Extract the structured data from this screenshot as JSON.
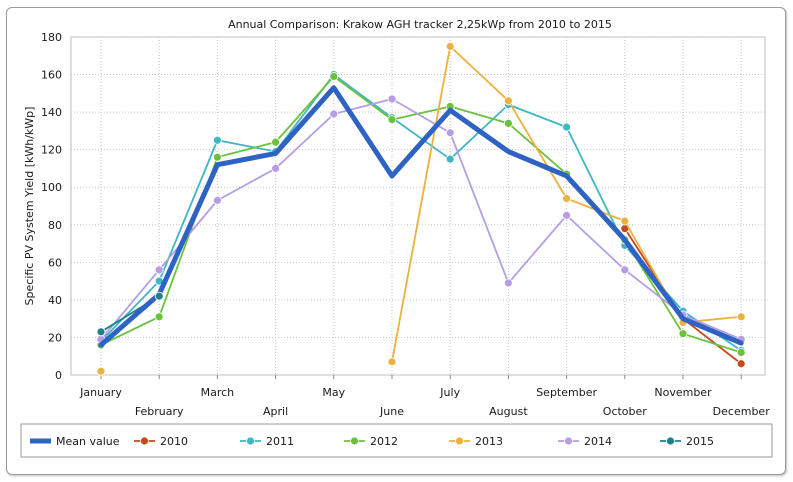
{
  "chart_data": {
    "type": "line",
    "title": "Annual Comparison: Krakow AGH tracker 2,25kWp from 2010 to 2015",
    "xlabel": "",
    "ylabel": "Specific PV System Yield [kWh/kWp]",
    "ylim": [
      0,
      180
    ],
    "yticks": [
      0,
      20,
      40,
      60,
      80,
      100,
      120,
      140,
      160,
      180
    ],
    "grid": true,
    "legend_position": "bottom",
    "categories": [
      "January",
      "February",
      "March",
      "April",
      "May",
      "June",
      "July",
      "August",
      "September",
      "October",
      "November",
      "December"
    ],
    "series": [
      {
        "name": "2010",
        "color": "#c8471b",
        "values": [
          null,
          null,
          null,
          null,
          null,
          null,
          null,
          null,
          null,
          78,
          30,
          6
        ]
      },
      {
        "name": "2011",
        "color": "#3fb6c4",
        "values": [
          18,
          50,
          125,
          119,
          160,
          137,
          115,
          144,
          132,
          69,
          34,
          13
        ]
      },
      {
        "name": "2012",
        "color": "#6ac23c",
        "values": [
          16,
          31,
          116,
          124,
          159,
          136,
          143,
          134,
          107,
          72,
          22,
          12
        ]
      },
      {
        "name": "2013",
        "color": "#ecb13e",
        "values": [
          2,
          null,
          null,
          null,
          null,
          7,
          175,
          146,
          94,
          82,
          28,
          31
        ]
      },
      {
        "name": "2014",
        "color": "#b59ee6",
        "values": [
          19,
          56,
          93,
          110,
          139,
          147,
          129,
          49,
          85,
          56,
          32,
          19
        ]
      },
      {
        "name": "2015",
        "color": "#1f7f8c",
        "values": [
          23,
          42,
          null,
          null,
          null,
          null,
          null,
          null,
          null,
          null,
          null,
          null
        ]
      },
      {
        "name": "Mean value",
        "color": "#2e63c4",
        "values": [
          16,
          43,
          112,
          118,
          153,
          106,
          141,
          119,
          106,
          72,
          30,
          17
        ]
      }
    ],
    "legend": [
      "Mean value",
      "2010",
      "2011",
      "2012",
      "2013",
      "2014",
      "2015"
    ]
  },
  "colors": {
    "grid": "#c8c8c8",
    "mean": "#2e63c4"
  }
}
